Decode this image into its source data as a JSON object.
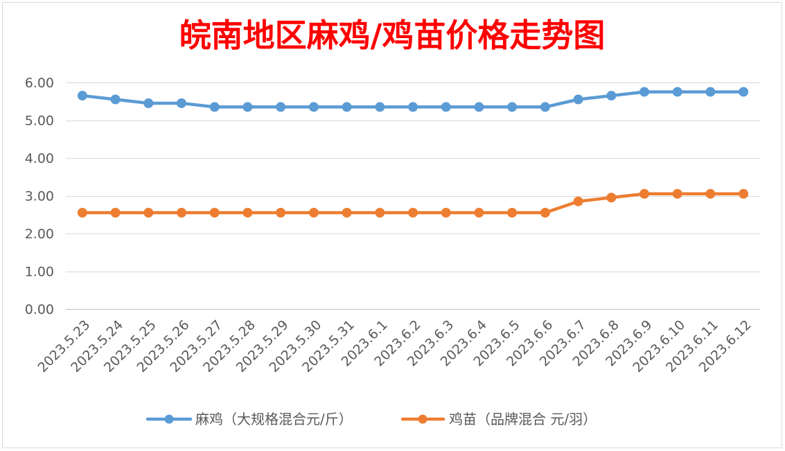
{
  "chart_data": {
    "type": "line",
    "title": "皖南地区麻鸡/鸡苗价格走势图",
    "title_color": "#FF0000",
    "categories": [
      "2023.5.23",
      "2023.5.24",
      "2023.5.25",
      "2023.5.26",
      "2023.5.27",
      "2023.5.28",
      "2023.5.29",
      "2023.5.30",
      "2023.5.31",
      "2023.6.1",
      "2023.6.2",
      "2023.6.3",
      "2023.6.4",
      "2023.6.5",
      "2023.6.6",
      "2023.6.7",
      "2023.6.8",
      "2023.6.9",
      "2023.6.10",
      "2023.6.11",
      "2023.6.12"
    ],
    "series": [
      {
        "name": "麻鸡（大规格混合元/斤）",
        "color": "#5B9BD5",
        "values": [
          5.65,
          5.55,
          5.45,
          5.45,
          5.35,
          5.35,
          5.35,
          5.35,
          5.35,
          5.35,
          5.35,
          5.35,
          5.35,
          5.35,
          5.35,
          5.55,
          5.65,
          5.75,
          5.75,
          5.75,
          5.75
        ]
      },
      {
        "name": "鸡苗（品牌混合 元/羽）",
        "color": "#ED7D31",
        "values": [
          2.55,
          2.55,
          2.55,
          2.55,
          2.55,
          2.55,
          2.55,
          2.55,
          2.55,
          2.55,
          2.55,
          2.55,
          2.55,
          2.55,
          2.55,
          2.85,
          2.95,
          3.05,
          3.05,
          3.05,
          3.05
        ]
      }
    ],
    "ylim": [
      0,
      6
    ],
    "ytick_labels": [
      "0.00",
      "1.00",
      "2.00",
      "3.00",
      "4.00",
      "5.00",
      "6.00"
    ],
    "grid": true,
    "legend": "bottom"
  }
}
